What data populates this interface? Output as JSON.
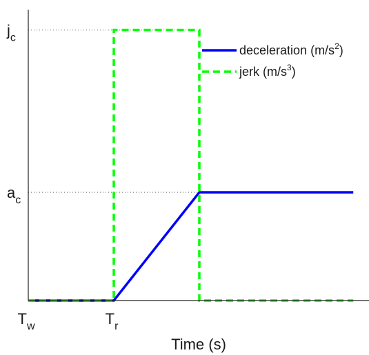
{
  "chart_data": {
    "type": "line",
    "xlabel": "Time (s)",
    "ylabel": "",
    "title": "",
    "xlim": [
      0,
      4
    ],
    "ylim": [
      0,
      2.5
    ],
    "grid": false,
    "legend_position": "top-right",
    "x_ticks": [
      {
        "value": 0,
        "main": "T",
        "sub": "w"
      },
      {
        "value": 1,
        "main": "T",
        "sub": "r"
      }
    ],
    "y_ticks": [
      {
        "value": 1,
        "main": "a",
        "sub": "c"
      },
      {
        "value": 2.5,
        "main": "j",
        "sub": "c"
      }
    ],
    "reference_lines": [
      {
        "y": 1,
        "x_end": 2
      },
      {
        "y": 2.5,
        "x_end": 2
      }
    ],
    "series": [
      {
        "name": "deceleration",
        "unit_base": "m/s",
        "unit_exp": "2",
        "color": "#0000ff",
        "style": "solid",
        "x": [
          0,
          1,
          2,
          3.8
        ],
        "y": [
          0,
          0,
          1,
          1
        ]
      },
      {
        "name": "jerk",
        "unit_base": "m/s",
        "unit_exp": "3",
        "color": "#00ff00",
        "style": "dashed",
        "x": [
          0,
          1,
          1,
          2,
          2,
          3.8
        ],
        "y": [
          0,
          0,
          2.5,
          2.5,
          0,
          0
        ]
      }
    ]
  }
}
